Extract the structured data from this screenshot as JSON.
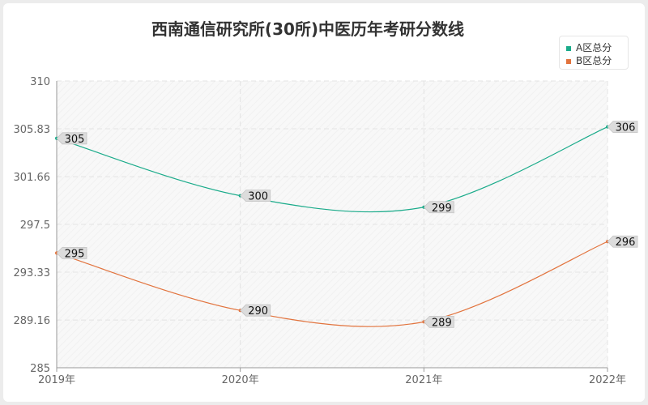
{
  "chart_data": {
    "type": "line",
    "title": "西南通信研究所(30所)中医历年考研分数线",
    "categories": [
      "2019年",
      "2020年",
      "2021年",
      "2022年"
    ],
    "series": [
      {
        "name": "A区总分",
        "color": "#1aab8a",
        "values": [
          305,
          300,
          299,
          306
        ]
      },
      {
        "name": "B区总分",
        "color": "#e2733d",
        "values": [
          295,
          290,
          289,
          296
        ]
      }
    ],
    "y_ticks": [
      "285",
      "289.16",
      "293.33",
      "297.5",
      "301.66",
      "305.83",
      "310"
    ],
    "ylim": [
      285,
      310
    ],
    "xlabel": "",
    "ylabel": "",
    "grid": true,
    "legend_position": "top-right",
    "smooth": true
  }
}
